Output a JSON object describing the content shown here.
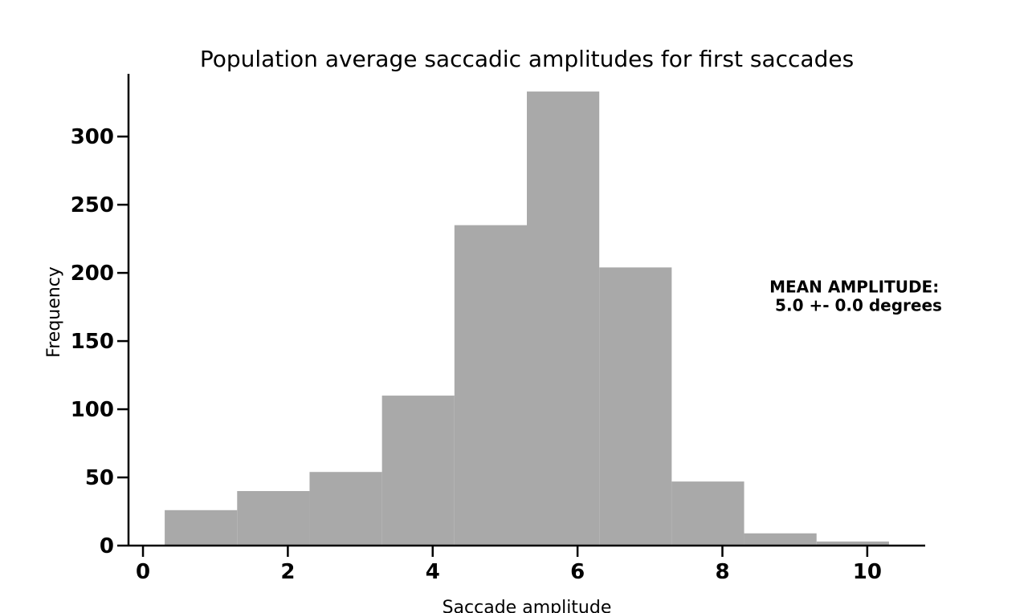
{
  "chart_data": {
    "type": "bar",
    "title": "Population average saccadic amplitudes for first saccades",
    "xlabel": "Saccade amplitude",
    "ylabel": "Frequency",
    "bins": [
      {
        "x0": 0.3,
        "x1": 1.3,
        "value": 26
      },
      {
        "x0": 1.3,
        "x1": 2.3,
        "value": 40
      },
      {
        "x0": 2.3,
        "x1": 3.3,
        "value": 54
      },
      {
        "x0": 3.3,
        "x1": 4.3,
        "value": 110
      },
      {
        "x0": 4.3,
        "x1": 5.3,
        "value": 235
      },
      {
        "x0": 5.3,
        "x1": 6.3,
        "value": 333
      },
      {
        "x0": 6.3,
        "x1": 7.3,
        "value": 204
      },
      {
        "x0": 7.3,
        "x1": 8.3,
        "value": 47
      },
      {
        "x0": 8.3,
        "x1": 9.3,
        "value": 9
      },
      {
        "x0": 9.3,
        "x1": 10.3,
        "value": 3
      }
    ],
    "xlim": [
      -0.2,
      10.8
    ],
    "ylim": [
      0,
      346
    ],
    "xticks": [
      0,
      2,
      4,
      6,
      8,
      10
    ],
    "xtick_labels": [
      "0",
      "2",
      "4",
      "6",
      "8",
      "10"
    ],
    "yticks": [
      0,
      50,
      100,
      150,
      200,
      250,
      300
    ],
    "ytick_labels": [
      "0",
      "50",
      "100",
      "150",
      "200",
      "250",
      "300"
    ],
    "grid": false,
    "bar_color": "#a9a9a9",
    "annotation": {
      "line1": "MEAN AMPLITUDE:",
      "line2": " 5.0 +- 0.0 degrees",
      "x": 8.65,
      "y": 185
    }
  }
}
